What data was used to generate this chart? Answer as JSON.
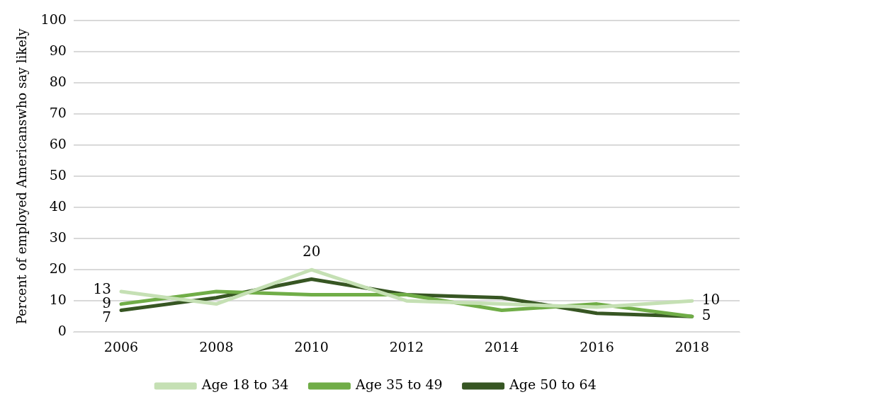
{
  "chart_data": {
    "type": "line",
    "ylabel": "Percent of employed Americanswho say likely",
    "categories": [
      "2006",
      "2008",
      "2010",
      "2012",
      "2014",
      "2016",
      "2018"
    ],
    "series": [
      {
        "name": "Age 18 to 34",
        "color": "#c5e0b4",
        "values": [
          13,
          9,
          20,
          10,
          9,
          8,
          10
        ],
        "value_labels": [
          "13",
          null,
          "20",
          null,
          null,
          null,
          "10"
        ]
      },
      {
        "name": "Age 35 to 49",
        "color": "#70ad47",
        "values": [
          9,
          13,
          12,
          12,
          7,
          9,
          5
        ],
        "value_labels": [
          "9",
          null,
          null,
          null,
          null,
          null,
          null
        ]
      },
      {
        "name": "Age 50 to 64",
        "color": "#375623",
        "values": [
          7,
          11,
          17,
          12,
          11,
          6,
          5
        ],
        "value_labels": [
          "7",
          null,
          null,
          null,
          null,
          null,
          "5"
        ]
      }
    ],
    "ylim": [
      0,
      100
    ],
    "yticks": [
      0,
      10,
      20,
      30,
      40,
      50,
      60,
      70,
      80,
      90,
      100
    ],
    "grid": "y",
    "legend": "bottom",
    "marker": "none",
    "line_style": "solid"
  }
}
